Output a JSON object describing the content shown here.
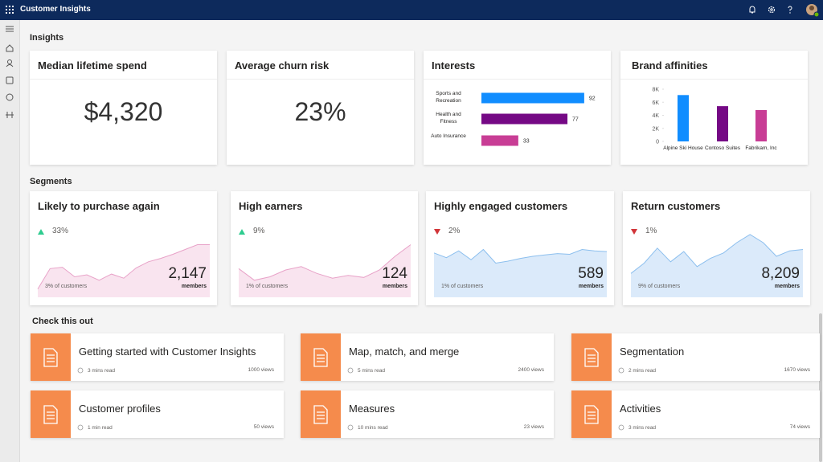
{
  "top_bar": {
    "app_name": "Customer Insights"
  },
  "insights": {
    "heading": "Insights",
    "kpis": [
      {
        "title": "Median lifetime spend",
        "value": "$4,320"
      },
      {
        "title": "Average churn risk",
        "value": "23%"
      }
    ],
    "interests": {
      "type": "bar",
      "orientation": "horizontal",
      "title": "Interests",
      "categories": [
        "Sports and Recreation",
        "Health and Fitness",
        "Auto Insurance"
      ],
      "values": [
        92,
        77,
        33
      ],
      "colors": [
        "#118dff",
        "#750985",
        "#c83d95"
      ]
    },
    "brand_affinities": {
      "type": "bar",
      "title": "Brand affinities",
      "categories": [
        "Alpine Ski House",
        "Contoso Suites",
        "Fabrikam, Inc"
      ],
      "values": [
        7100,
        5400,
        4800
      ],
      "colors": [
        "#118dff",
        "#750985",
        "#c83d95"
      ],
      "ylim": [
        0,
        8000
      ],
      "yticks": [
        0,
        {
          "value": 2000,
          "label": "2K"
        },
        {
          "value": 4000,
          "label": "4K"
        },
        {
          "value": 6000,
          "label": "6K"
        },
        {
          "value": 8000,
          "label": "8K"
        }
      ]
    }
  },
  "segments": {
    "heading": "Segments",
    "cards": [
      {
        "title": "Likely to purchase again",
        "change": "33%",
        "direction": "up",
        "share": "3% of customers",
        "members": "2,147",
        "members_label": "members",
        "fill": "#f9e4ef",
        "stroke": "#e8a2c8",
        "trend": [
          12,
          42,
          44,
          30,
          33,
          25,
          34,
          28,
          43,
          52,
          57,
          63,
          70,
          77,
          77
        ]
      },
      {
        "title": "High earners",
        "change": "9%",
        "direction": "up",
        "share": "1% of customers",
        "members": "124",
        "members_label": "members",
        "fill": "#f9e4ef",
        "stroke": "#e8a2c8",
        "trend": [
          42,
          25,
          30,
          40,
          45,
          35,
          28,
          32,
          29,
          40,
          60,
          77
        ]
      },
      {
        "title": "Highly engaged customers",
        "change": "2%",
        "direction": "down",
        "share": "1% of customers",
        "members": "589",
        "members_label": "members",
        "fill": "#dbeafa",
        "stroke": "#8cbfee",
        "trend": [
          65,
          58,
          68,
          55,
          70,
          50,
          53,
          57,
          60,
          62,
          64,
          63,
          70,
          68,
          67
        ]
      },
      {
        "title": "Return customers",
        "change": "1%",
        "direction": "down",
        "share": "9% of customers",
        "members": "8,209",
        "members_label": "members",
        "fill": "#dbeafa",
        "stroke": "#8cbfee",
        "trend": [
          35,
          50,
          72,
          52,
          67,
          45,
          57,
          65,
          80,
          92,
          80,
          60,
          68,
          70
        ]
      }
    ]
  },
  "check_this_out": {
    "heading": "Check this out",
    "articles": [
      {
        "title": "Getting started with Customer Insights",
        "read_time": "3 mins read",
        "views": "1000 views"
      },
      {
        "title": "Map, match, and merge",
        "read_time": "5 mins read",
        "views": "2400 views"
      },
      {
        "title": "Segmentation",
        "read_time": "2 mins read",
        "views": "1670 views"
      },
      {
        "title": "Customer profiles",
        "read_time": "1 min read",
        "views": "50 views"
      },
      {
        "title": "Measures",
        "read_time": "10 mins read",
        "views": "23 views"
      },
      {
        "title": "Activities",
        "read_time": "3 mins read",
        "views": "74 views"
      }
    ]
  }
}
